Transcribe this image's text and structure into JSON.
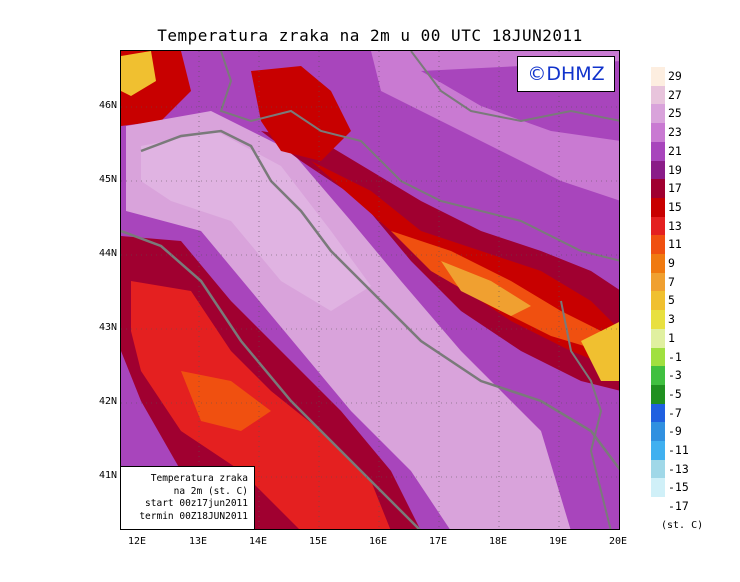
{
  "title": "Temperatura zraka na 2m u 00 UTC 18JUN2011",
  "logo": "©DHMZ",
  "info_box": [
    "Temperatura zraka",
    "na 2m (st. C)",
    "start 00z17jun2011",
    "termin 00Z18JUN2011"
  ],
  "lat_labels": [
    "46N",
    "45N",
    "44N",
    "43N",
    "42N",
    "41N"
  ],
  "lon_labels": [
    "12E",
    "13E",
    "14E",
    "15E",
    "16E",
    "17E",
    "18E",
    "19E",
    "20E"
  ],
  "legend": {
    "unit": "(st. C)",
    "labels": [
      "29",
      "27",
      "25",
      "23",
      "21",
      "19",
      "17",
      "15",
      "13",
      "11",
      "9",
      "7",
      "5",
      "3",
      "1",
      "-1",
      "-3",
      "-5",
      "-7",
      "-9",
      "-11",
      "-13",
      "-15",
      "-17"
    ],
    "colors": [
      "#fdeee0",
      "#e8c4dc",
      "#d9a3db",
      "#c97ad2",
      "#a845bc",
      "#8a1c88",
      "#a00030",
      "#c80000",
      "#e42020",
      "#f05010",
      "#f07a10",
      "#f0a030",
      "#f0c030",
      "#e8e040",
      "#e0f0a0",
      "#a0e040",
      "#40c040",
      "#209020",
      "#2060e0",
      "#3090e0",
      "#40b0f0",
      "#a0d8e8",
      "#d0f0f8",
      "#ffffff"
    ]
  }
}
